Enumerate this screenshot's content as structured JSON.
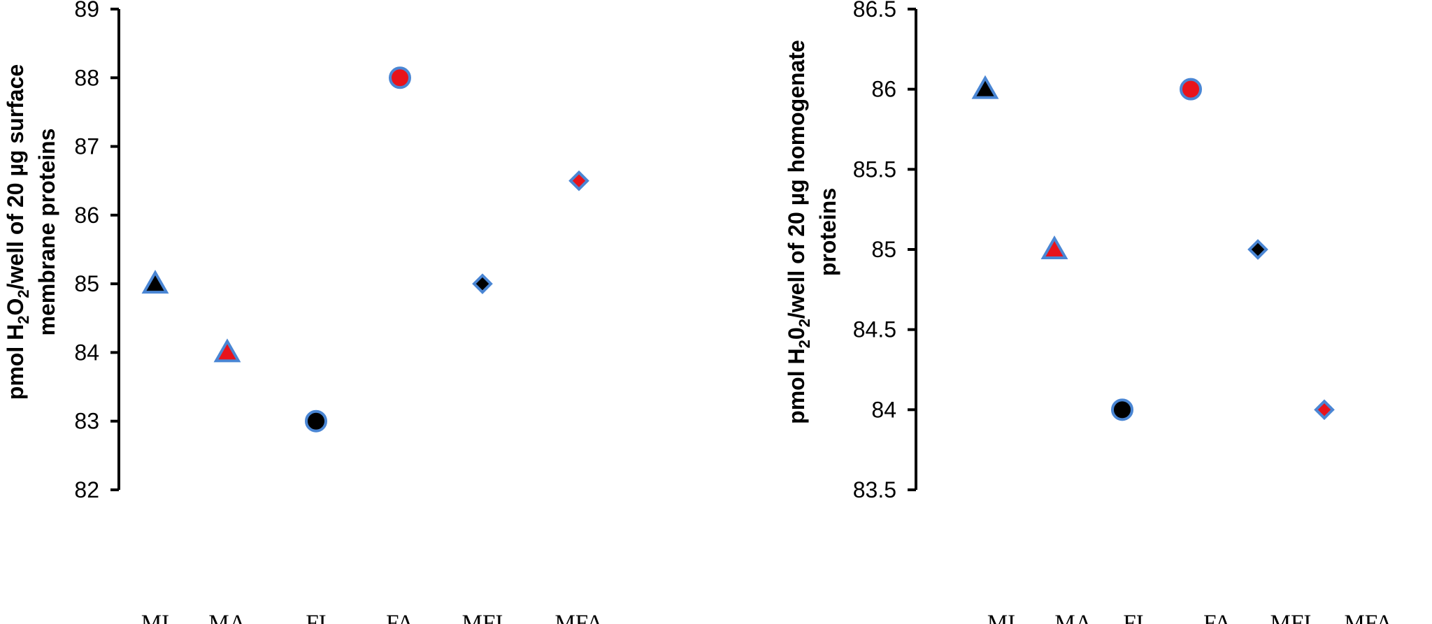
{
  "chart_data": [
    {
      "type": "scatter",
      "ylabel_lines": [
        [
          "pmol H",
          "2",
          "O",
          "2",
          "/well of 20 µg surface"
        ],
        [
          "membrane proteins"
        ]
      ],
      "ylim": [
        82,
        89
      ],
      "yticks": [
        82,
        83,
        84,
        85,
        86,
        87,
        88,
        89
      ],
      "ytick_labels": [
        "82",
        "83",
        "84",
        "85",
        "86",
        "87",
        "88",
        "89"
      ],
      "grid": false,
      "categories": [
        "MI",
        "MA",
        "FI",
        "FA",
        "MFI",
        "MFA"
      ],
      "points": [
        {
          "category": "MI",
          "y": 85,
          "marker": "triangle",
          "fill": "#000000",
          "stroke": "#4a86d4"
        },
        {
          "category": "MA",
          "y": 84,
          "marker": "triangle",
          "fill": "#e8131b",
          "stroke": "#4a86d4"
        },
        {
          "category": "FI",
          "y": 83,
          "marker": "circle",
          "fill": "#000000",
          "stroke": "#4a86d4"
        },
        {
          "category": "FA",
          "y": 88,
          "marker": "circle",
          "fill": "#e8131b",
          "stroke": "#4a86d4"
        },
        {
          "category": "MFI",
          "y": 85,
          "marker": "diamond",
          "fill": "#000000",
          "stroke": "#4a86d4"
        },
        {
          "category": "MFA",
          "y": 86.5,
          "marker": "diamond",
          "fill": "#e8131b",
          "stroke": "#4a86d4"
        }
      ]
    },
    {
      "type": "scatter",
      "ylabel_lines": [
        [
          "pmol H",
          "2",
          "0",
          "2",
          "/well of 20 µg homogenate"
        ],
        [
          "proteins"
        ]
      ],
      "ylim": [
        83.5,
        86.5
      ],
      "yticks": [
        83.5,
        84,
        84.5,
        85,
        85.5,
        86,
        86.5
      ],
      "ytick_labels": [
        "83.5",
        "84",
        "84.5",
        "85",
        "85.5",
        "86",
        "86.5"
      ],
      "grid": false,
      "categories": [
        "MI",
        "MA",
        "FI",
        "FA",
        "MFI",
        "MFA"
      ],
      "points": [
        {
          "category": "MI",
          "y": 86,
          "marker": "triangle",
          "fill": "#000000",
          "stroke": "#4a86d4"
        },
        {
          "category": "MA",
          "y": 85,
          "marker": "triangle",
          "fill": "#e8131b",
          "stroke": "#4a86d4"
        },
        {
          "category": "FI",
          "y": 84,
          "marker": "circle",
          "fill": "#000000",
          "stroke": "#4a86d4"
        },
        {
          "category": "FA",
          "y": 86,
          "marker": "circle",
          "fill": "#e8131b",
          "stroke": "#4a86d4"
        },
        {
          "category": "MFI",
          "y": 85,
          "marker": "diamond",
          "fill": "#000000",
          "stroke": "#4a86d4"
        },
        {
          "category": "MFA",
          "y": 84,
          "marker": "diamond",
          "fill": "#e8131b",
          "stroke": "#4a86d4"
        }
      ]
    }
  ]
}
